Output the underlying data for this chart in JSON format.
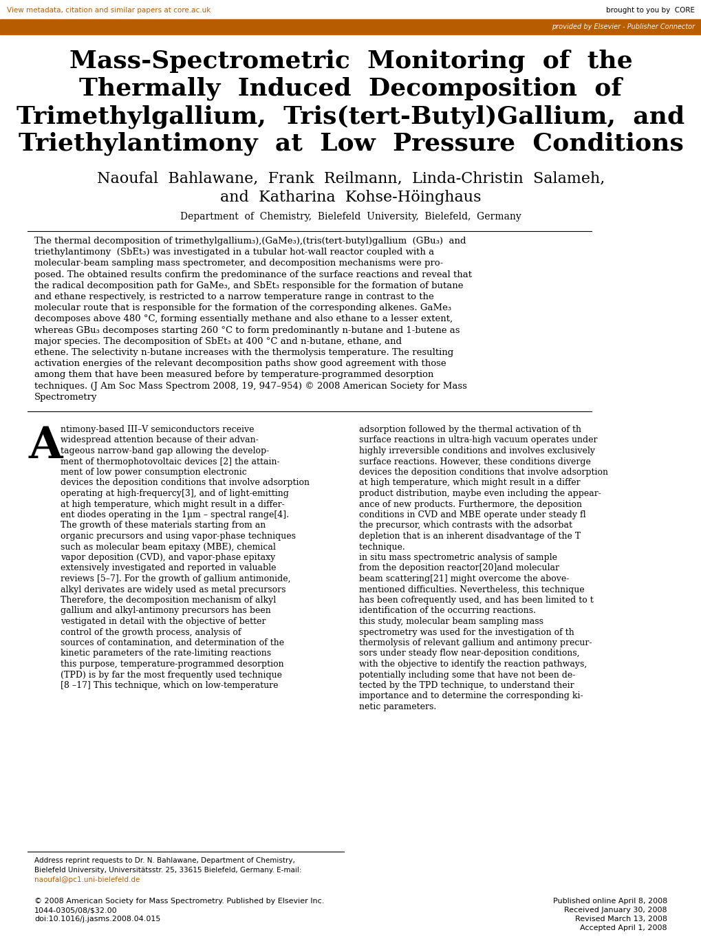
{
  "bg_color": "#ffffff",
  "header_bar_color": "#b85c00",
  "header_bar_text": "provided by Elsevier - Publisher Connector",
  "header_link_text": "View metadata, citation and similar papers at core.ac.uk",
  "header_link_color": "#b85c00",
  "core_text": "brought to you by  CORE",
  "title_line1": "Mass-Spectrometric  Monitoring  of  the",
  "title_line2": "Thermally  Induced  Decomposition  of",
  "title_line3": "Trimethylgallium,  Tris(⁠tert-Butyl)Gallium,  and",
  "title_line4": "Triethylantimony  at  Low  Pressure  Conditions",
  "authors_line1": "Naoufal  Bahlawane,  Frank  Reilmann,  Linda-Christin  Salameh,",
  "authors_line2": "and  Katharina  Kohse-Höinghaus",
  "affiliation": "Department  of  Chemistry,  Bielefeld  University,  Bielefeld,  Germany",
  "abstract_lines": [
    "The thermal decomposition of trimethylgallium₃),(GaMe₃),(tris(tert-butyl)gallium  (GBu₃)  and",
    "triethylantimony  (SbEt₃) was investigated in a tubular hot-wall reactor coupled with a",
    "molecular-beam sampling mass spectrometer, and decomposition mechanisms were pro-",
    "posed. The obtained results confirm the predominance of the surface reactions and reveal that",
    "the radical decomposition path for GaMe₃, and SbEt₃ responsible for the formation of butane",
    "and ethane respectively, is restricted to a narrow temperature range in contrast to the",
    "molecular route that is responsible for the formation of the corresponding alkenes. GaMe₃",
    "decomposes above 480 °C, forming essentially methane and also ethane to a lesser extent,",
    "whereas GBu₃ decomposes starting 260 °C to form predominantly n-butane and 1-butene as",
    "major species. The decomposition of SbEt₃ at 400 °C and n-butane, ethane, and",
    "ethene. The selectivity n-butane increases with the thermolysis temperature. The resulting",
    "activation energies of the relevant decomposition paths show good agreement with those",
    "among them that have been measured before by temperature-programmed desorption",
    "techniques. (J Am Soc Mass Spectrom 2008, 19, 947–954) © 2008 American Society for Mass",
    "Spectrometry"
  ],
  "left_col_lines": [
    "ntimony-based III–V semiconductors receive",
    "widespread attention because of their advan-",
    "tageous narrow-band gap allowing the develop-",
    "ment of thermophotovoltaic de​vices [2] the attain-",
    "ment of low power consumption electronic",
    "de​vices the deposition conditions that involve adsorption",
    "operating at high-frequer​cy[3], and of light-emitting",
    "at high temperature, which might result in a differ-",
    "ent diodes operating in the 1µm – spe​ctral ran​ge[4].",
    "The growth of these materials starting from an",
    "organic precursors and using vapor-phase techni​ques",
    "such as molecular beam epitaxy (MBE), chemi​cal",
    "vapor deposition (CVD), and vapor-phase epitaxy",
    "extensively investigated and reported in valu​able",
    "reviews [5–7]. For the growth of gallium antimonide,",
    "alkyl derivates are widely used as metal precursors",
    "Therefore, the decomposition mechanism of alkyl",
    "gallium and alkyl-antimony precursors has been",
    "vestigated in detail with the objective of better",
    "control of the growth process, analysis of",
    "sources of contamination, and determination of the",
    "kinetic parameters of the rate-limiting reactions",
    "this purpose, temperature-programmed desorption",
    "(TPD) is by far the most frequently used techni​que",
    "[8 –17] This technique, wh​ich on low-temperature"
  ],
  "right_col_lines": [
    "adsorption followed by the thermal activation of th",
    "surface reactions in ultra-high vacuum operates under",
    "hi​ghly irreversible conditions and involves exclusively",
    "surface reactions. However, these conditions diverge",
    "de​vices the deposition conditions that involve adsorption",
    "at high temperature, which might result in a differ",
    "product distribution, maybe even including the appear-",
    "ance of new produ​cts. Furthermore, the deposition",
    "conditions in CVD and MBE operate under steady fl",
    "the precursor, which contrasts with the adsorbat",
    "depletion that is an inherent disadvantage of the T",
    "techni​que.",
    "in situ mass spectrometric analysis of sample",
    "from the deposition re​actor[20]and molecular",
    "beam scattering[21] might overcome the above-",
    "mentioned difficulties. Nevertheless, this technique",
    "has been co​frequently used, and has been limited to t",
    "ide​ntification of the occurring reactions.",
    "this study, molecular beam sampling mass",
    "spectrometry was used for the investigation of th",
    "thermolysis of relevant gallium and antimony precur-",
    "sors under steady flow near-deposition conditions,",
    "with the objective to identify the reaction pathways,",
    "potentially including some that have not been de-",
    "tected by the TPD technique, to understand their",
    "importance and to determine the corresponding ki-",
    "netic parameters."
  ],
  "addr_lines": [
    "Address reprint requests to Dr. N. Bahlawane, Department of Chemistry,",
    "Bielefeld University, Universitätsstr. 25, 33615 Bielefeld, Germany. E-mail:",
    "naoufal@pc1.uni-bielefeld.de"
  ],
  "addr_colors": [
    "#000000",
    "#000000",
    "#b85c00"
  ],
  "copy_lines": [
    "© 2008 American Society for Mass Spectrometry. Published by Elsevier Inc.",
    "1044-0305/08/$32.00",
    "doi:10.1016/j.jasms.2008.04.015"
  ],
  "pub_lines": [
    "Published online April 8, 2008",
    "Received January 30, 2008",
    "Revised March 13, 2008",
    "Accepted April 1, 2008"
  ]
}
